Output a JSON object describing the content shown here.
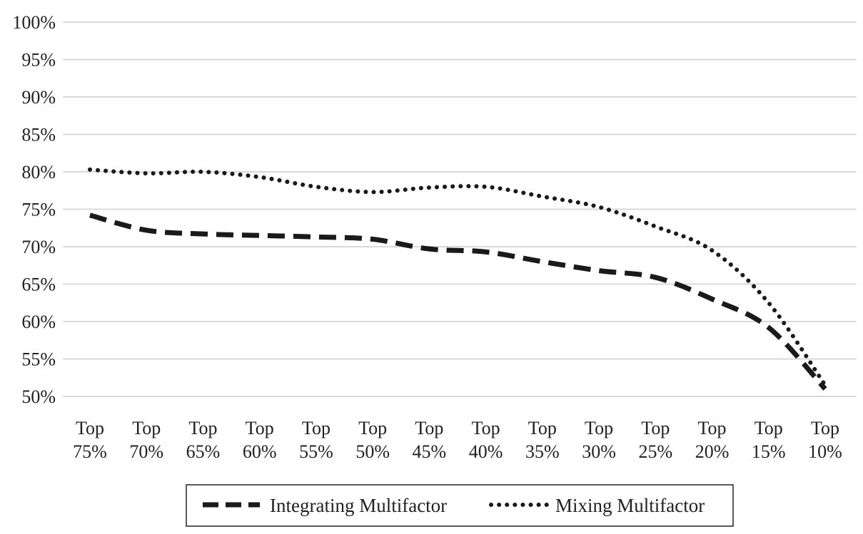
{
  "chart_data": {
    "type": "line",
    "categories": [
      [
        "Top",
        "75%"
      ],
      [
        "Top",
        "70%"
      ],
      [
        "Top",
        "65%"
      ],
      [
        "Top",
        "60%"
      ],
      [
        "Top",
        "55%"
      ],
      [
        "Top",
        "50%"
      ],
      [
        "Top",
        "45%"
      ],
      [
        "Top",
        "40%"
      ],
      [
        "Top",
        "35%"
      ],
      [
        "Top",
        "30%"
      ],
      [
        "Top",
        "25%"
      ],
      [
        "Top",
        "20%"
      ],
      [
        "Top",
        "15%"
      ],
      [
        "Top",
        "10%"
      ]
    ],
    "series": [
      {
        "name": "Integrating Multifactor",
        "style": "dashed",
        "values": [
          74.2,
          72.2,
          71.7,
          71.5,
          71.3,
          71.0,
          69.7,
          69.3,
          68.0,
          66.8,
          65.9,
          63.0,
          59.2,
          51.0
        ]
      },
      {
        "name": "Mixing Multifactor",
        "style": "dotted",
        "values": [
          80.3,
          79.8,
          80.0,
          79.3,
          78.0,
          77.3,
          77.9,
          78.0,
          76.7,
          75.3,
          72.7,
          69.5,
          62.5,
          51.5
        ]
      }
    ],
    "y_ticks": [
      "100%",
      "95%",
      "90%",
      "85%",
      "80%",
      "75%",
      "70%",
      "65%",
      "60%",
      "55%",
      "50%"
    ],
    "ylim": [
      50,
      100
    ],
    "title": "",
    "xlabel": "",
    "ylabel": "",
    "grid": true,
    "legend_position": "bottom-center",
    "colors": {
      "line": "#1a1a1a",
      "grid": "#d9d9d9",
      "text": "#222222"
    }
  }
}
